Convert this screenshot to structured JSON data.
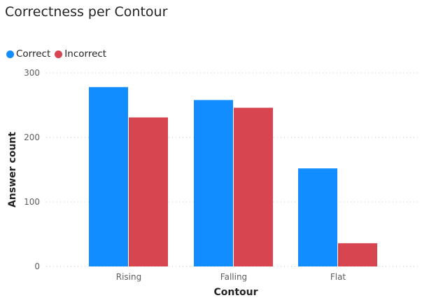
{
  "chart_data": {
    "type": "bar",
    "title": "Correctness per Contour",
    "xlabel": "Contour",
    "ylabel": "Answer count",
    "categories": [
      "Rising",
      "Falling",
      "Flat"
    ],
    "series": [
      {
        "name": "Correct",
        "values": [
          278,
          258,
          152
        ],
        "color": "#118DFF"
      },
      {
        "name": "Incorrect",
        "values": [
          231,
          246,
          36
        ],
        "color": "#D64550"
      }
    ],
    "ylim": [
      0,
      300
    ],
    "yticks": [
      0,
      100,
      200,
      300
    ],
    "grid": true,
    "legend": "top-left"
  }
}
